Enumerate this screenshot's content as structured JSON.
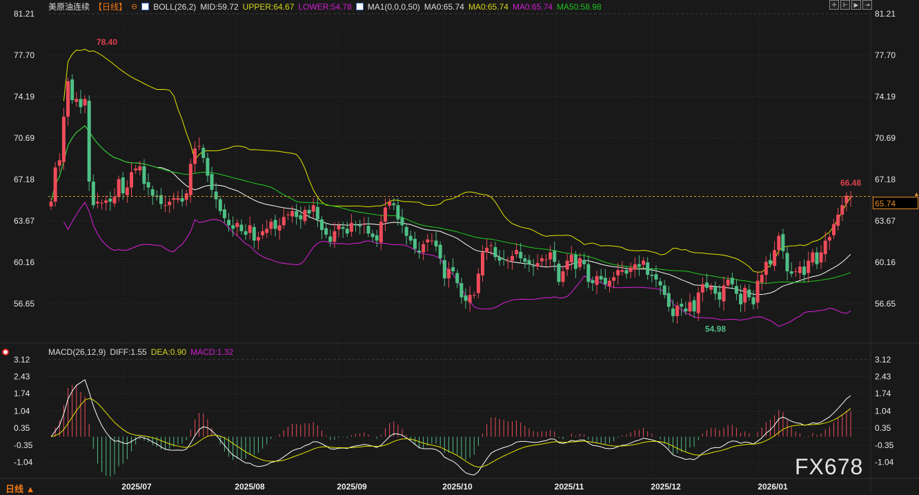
{
  "header": {
    "symbol": "美原油连续",
    "period": "【日线】",
    "boll": "BOLL(26,2)",
    "mid": "MID:59.72",
    "upper": "UPPER:64.67",
    "lower": "LOWER:54.78",
    "ma1": "MA1(0,0,0,50)",
    "ma0a": "MA0:65.74",
    "ma0b": "MA0:65.74",
    "ma0c": "MA0:65.74",
    "ma50": "MA50:58.98"
  },
  "macd_legend": {
    "name": "MACD(26,12,9)",
    "diff": "DIFF:1.55",
    "dea": "DEA:0.90",
    "macd": "MACD:1.32"
  },
  "price_axis": [
    "81.21",
    "77.70",
    "74.19",
    "70.69",
    "67.18",
    "63.67",
    "60.16",
    "56.65"
  ],
  "macd_axis": [
    "3.12",
    "2.43",
    "1.74",
    "1.04",
    "0.35",
    "-0.35",
    "-1.04"
  ],
  "x_axis": [
    "2025/07",
    "2025/08",
    "2025/09",
    "2025/10",
    "2025/11",
    "2025/12",
    "2026/01"
  ],
  "annotations": {
    "high": "78.40",
    "low": "54.98",
    "last_high": "66.48",
    "current_price": "65.74"
  },
  "footer": {
    "period_label": "日线 ▲",
    "watermark": "FX678"
  },
  "toolbar": [
    "crosshair",
    "zoom-range",
    "play",
    "fit"
  ],
  "colors": {
    "up": "#ee4c5a",
    "down": "#4fbf86",
    "mid": "#ffffff",
    "upper": "#e8e800",
    "lower": "#e020e0",
    "ma50": "#20d020",
    "current": "#e8922a"
  },
  "chart_data": {
    "type": "candlestick",
    "price_range": [
      54.0,
      81.21
    ],
    "closes": [
      65.3,
      68.2,
      68.8,
      72.5,
      75.5,
      73.9,
      74.0,
      73.3,
      74.0,
      67.0,
      65.0,
      65.3,
      65.2,
      65.4,
      65.3,
      65.7,
      67.2,
      66.0,
      66.5,
      67.8,
      68.1,
      68.3,
      66.8,
      66.5,
      65.8,
      65.7,
      65.1,
      65.0,
      65.3,
      65.6,
      65.6,
      65.3,
      66.0,
      68.5,
      69.8,
      70.0,
      69.0,
      67.5,
      66.3,
      65.5,
      64.5,
      63.9,
      63.3,
      63.0,
      63.5,
      62.8,
      62.5,
      63.3,
      62.0,
      62.3,
      62.8,
      63.0,
      63.6,
      63.0,
      63.3,
      64.0,
      64.2,
      64.5,
      64.0,
      63.8,
      64.6,
      64.3,
      65.0,
      63.8,
      62.9,
      62.5,
      61.9,
      62.8,
      63.3,
      63.0,
      62.6,
      63.5,
      63.3,
      63.2,
      63.4,
      62.6,
      62.3,
      62.0,
      63.6,
      64.8,
      65.3,
      65.0,
      63.8,
      63.3,
      62.4,
      62.0,
      61.3,
      61.0,
      61.7,
      62.1,
      62.0,
      61.5,
      60.5,
      58.8,
      59.6,
      59.4,
      58.4,
      57.2,
      56.9,
      57.4,
      57.4,
      59.2,
      61.0,
      61.4,
      61.6,
      60.6,
      60.3,
      60.4,
      60.3,
      60.7,
      61.2,
      60.5,
      60.2,
      60.0,
      59.8,
      60.1,
      60.5,
      60.4,
      61.0,
      60.2,
      58.5,
      59.4,
      60.3,
      60.8,
      59.6,
      60.5,
      60.0,
      58.5,
      58.4,
      59.0,
      58.7,
      58.3,
      58.6,
      58.9,
      59.5,
      59.5,
      59.2,
      59.7,
      60.0,
      59.8,
      60.3,
      59.1,
      59.0,
      58.7,
      58.2,
      57.4,
      56.4,
      55.6,
      56.5,
      56.4,
      56.0,
      56.8,
      56.0,
      57.6,
      58.3,
      58.0,
      58.1,
      57.5,
      57.0,
      58.2,
      58.7,
      58.3,
      57.5,
      56.6,
      58.0,
      57.2,
      56.6,
      58.6,
      59.1,
      60.2,
      60.0,
      61.2,
      62.4,
      61.1,
      59.4,
      59.2,
      59.4,
      59.8,
      59.1,
      60.3,
      61.0,
      60.0,
      61.0,
      62.0,
      62.3,
      63.4,
      64.2,
      65.0,
      65.8,
      65.74
    ],
    "high": 78.4,
    "low": 54.98,
    "current": 65.74,
    "macd_range": [
      -1.6,
      3.3
    ]
  }
}
